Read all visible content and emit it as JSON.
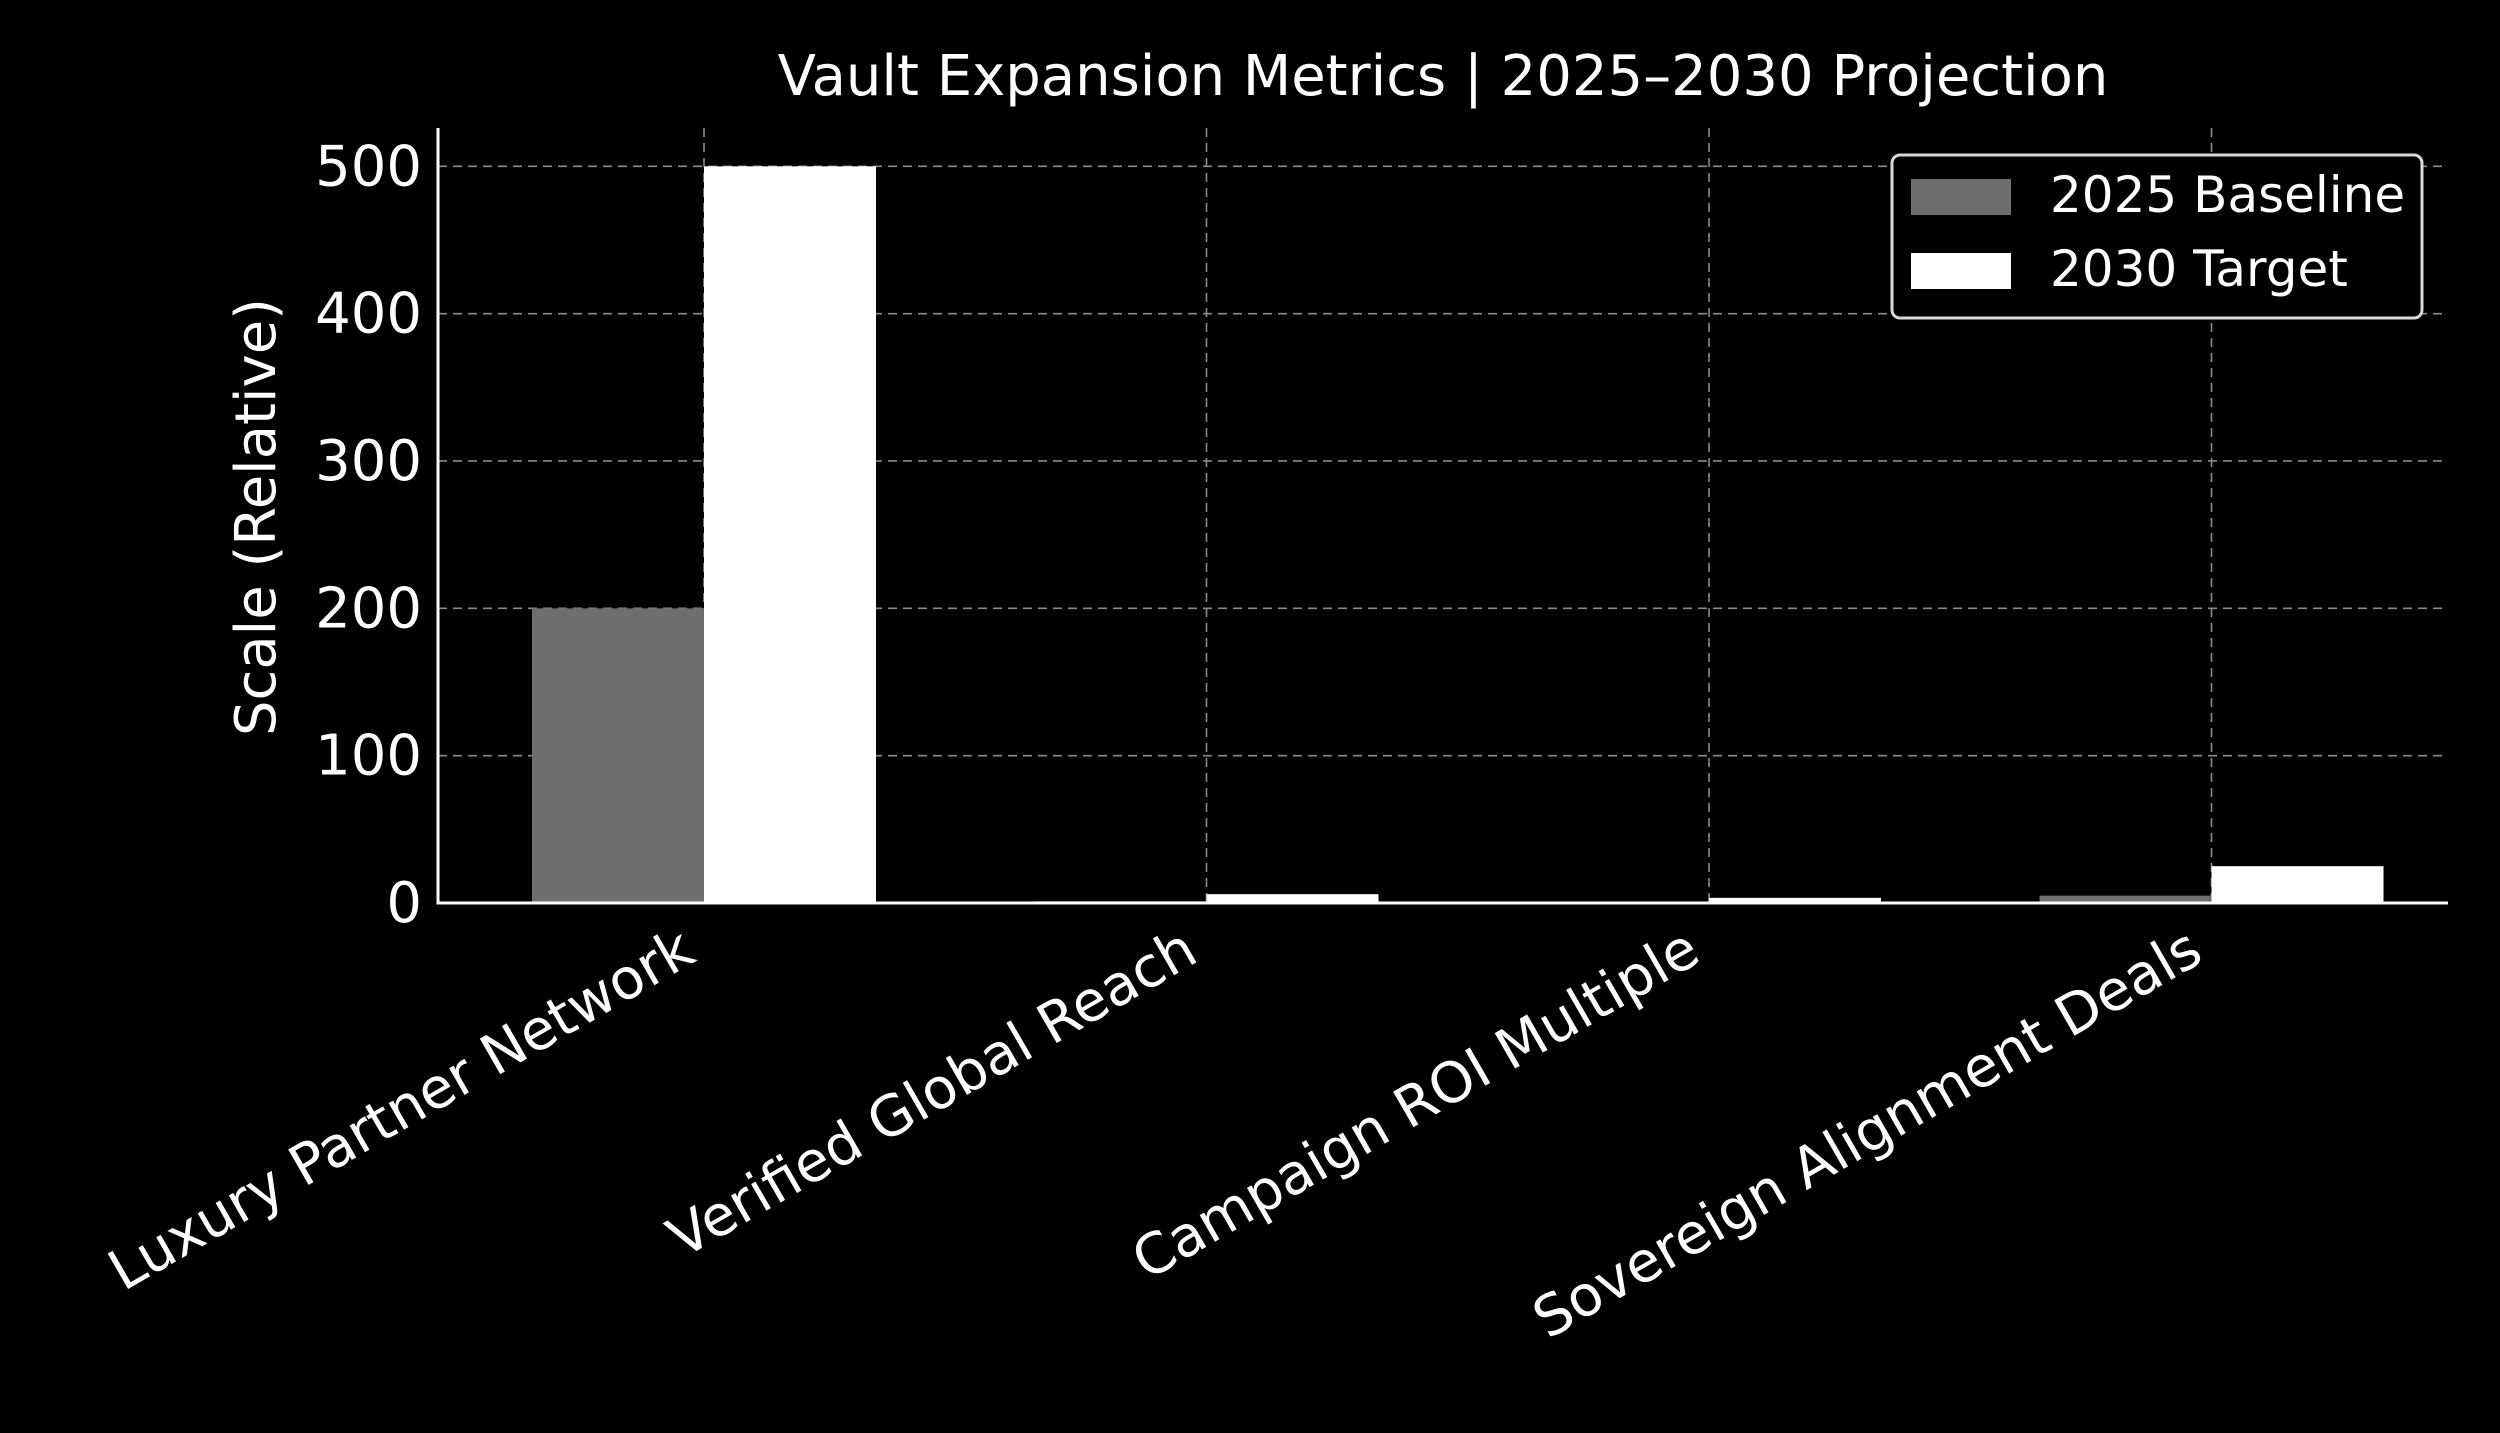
{
  "chart_data": {
    "type": "bar",
    "title": "Vault Expansion Metrics | 2025–2030 Projection",
    "xlabel": "",
    "ylabel": "Scale (Relative)",
    "categories": [
      "Luxury Partner Network",
      "Verified Global Reach",
      "Campaign ROI Multiple",
      "Sovereign Alignment Deals"
    ],
    "series": [
      {
        "name": "2025 Baseline",
        "values": [
          200,
          1.2,
          0.5,
          5
        ],
        "color": "#6e6e6e"
      },
      {
        "name": "2030 Target",
        "values": [
          500,
          6,
          3.5,
          25
        ],
        "color": "#ffffff"
      }
    ],
    "ylim": [
      0,
      526
    ],
    "yticks": [
      0,
      100,
      200,
      300,
      400,
      500
    ],
    "grid": true,
    "legend": "top-right",
    "background": "#000000",
    "text_color": "#ffffff",
    "grid_color": "#8a8a8a"
  }
}
